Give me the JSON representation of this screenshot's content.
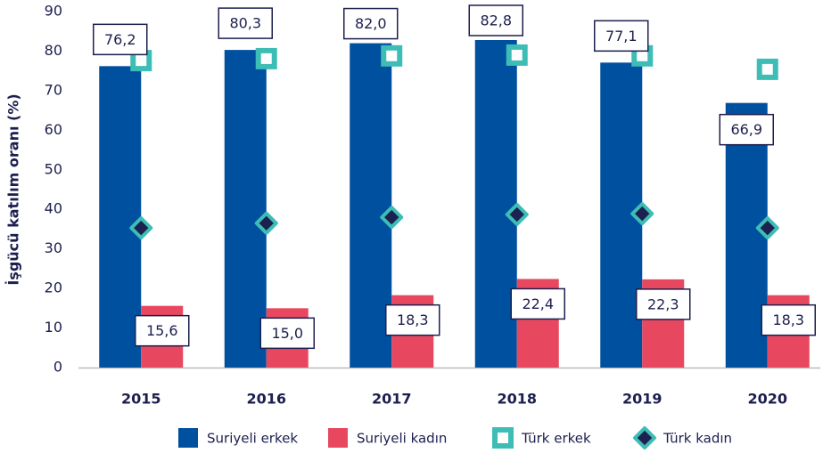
{
  "chart_data": {
    "type": "bar",
    "ylabel": "İşgücü katılım oranı (%)",
    "categories": [
      "2015",
      "2016",
      "2017",
      "2018",
      "2019",
      "2020"
    ],
    "ylim": [
      0,
      90
    ],
    "yticks": [
      0,
      10,
      20,
      30,
      40,
      50,
      60,
      70,
      80,
      90
    ],
    "grid": false,
    "legend": "bottom",
    "series": [
      {
        "name": "Suriyeli erkek",
        "kind": "bar",
        "color": "#0050a0",
        "values": [
          76.2,
          80.3,
          82.0,
          82.8,
          77.1,
          66.9
        ],
        "value_labels": [
          "76,2",
          "80,3",
          "82,0",
          "82,8",
          "77,1",
          "66,9"
        ]
      },
      {
        "name": "Suriyeli kadın",
        "kind": "bar",
        "color": "#e8485f",
        "values": [
          15.6,
          15.0,
          18.3,
          22.4,
          22.3,
          18.3
        ],
        "value_labels": [
          "15,6",
          "15,0",
          "18,3",
          "22,4",
          "22,3",
          "18,3"
        ]
      },
      {
        "name": "Türk erkek",
        "kind": "square",
        "color": "#3dbdb5",
        "values": [
          77.6,
          78.1,
          78.8,
          79.0,
          78.8,
          75.4
        ]
      },
      {
        "name": "Türk kadın",
        "kind": "diamond",
        "color": "#1c2150",
        "edgecolor": "#3dbdb5",
        "values": [
          35.3,
          36.5,
          38.0,
          38.7,
          38.9,
          35.3
        ]
      }
    ]
  }
}
